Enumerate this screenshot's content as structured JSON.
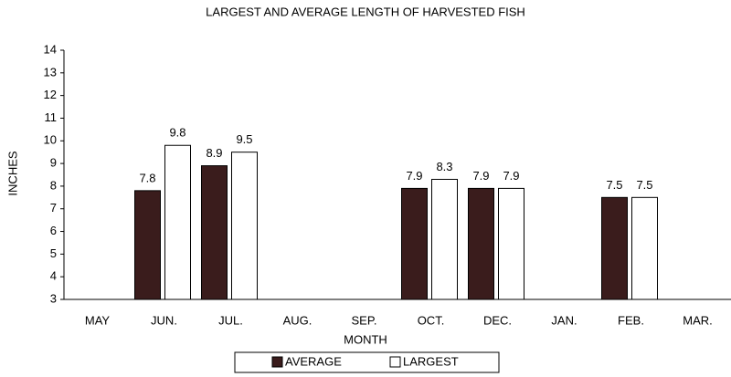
{
  "chart_data": {
    "type": "bar",
    "title": "LARGEST AND AVERAGE LENGTH OF HARVESTED FISH",
    "x_label": "MONTH",
    "y_label": "INCHES",
    "categories": [
      "MAY",
      "JUN.",
      "JUL.",
      "AUG.",
      "SEP.",
      "OCT.",
      "DEC.",
      "JAN.",
      "FEB.",
      "MAR."
    ],
    "series": [
      {
        "name": "AVERAGE",
        "color": "#3a1c1c",
        "values": [
          null,
          7.8,
          8.9,
          null,
          null,
          7.9,
          7.9,
          null,
          7.5,
          null
        ]
      },
      {
        "name": "LARGEST",
        "color": "#ffffff",
        "values": [
          null,
          9.8,
          9.5,
          null,
          null,
          8.3,
          7.9,
          null,
          7.5,
          null
        ]
      }
    ],
    "ylim": [
      3,
      14
    ],
    "yticks": [
      3,
      4,
      5,
      6,
      7,
      8,
      9,
      10,
      11,
      12,
      13,
      14
    ],
    "legend": "bottom"
  }
}
